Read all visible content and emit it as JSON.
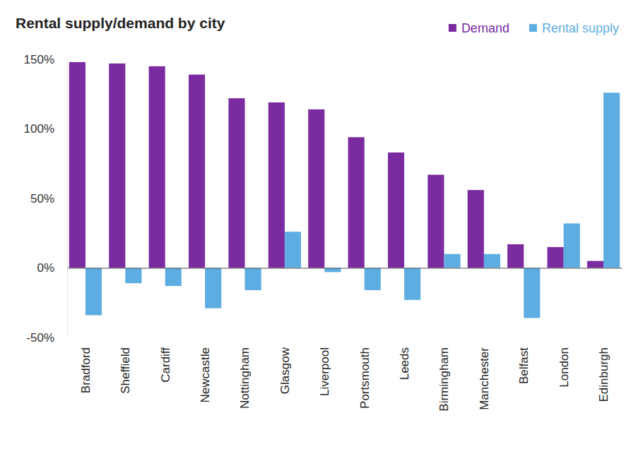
{
  "chart_data": {
    "type": "bar",
    "title": "Rental supply/demand by city",
    "categories": [
      "Bradford",
      "Sheffield",
      "Cardiff",
      "Newcastle",
      "Nottingham",
      "Glasgow",
      "Liverpool",
      "Portsmouth",
      "Leeds",
      "Birmingham",
      "Manchester",
      "Belfast",
      "London",
      "Edinburgh"
    ],
    "series": [
      {
        "name": "Demand",
        "color": "#7a2b9f",
        "values": [
          148,
          147,
          145,
          139,
          122,
          119,
          114,
          94,
          83,
          67,
          56,
          17,
          15,
          5
        ]
      },
      {
        "name": "Rental supply",
        "color": "#5dade2",
        "values": [
          -34,
          -11,
          -13,
          -29,
          -16,
          26,
          -3,
          -16,
          -23,
          10,
          10,
          -36,
          32,
          126
        ]
      }
    ],
    "ylim": [
      -50,
      150
    ],
    "yticks": [
      {
        "value": -50,
        "label": "-50%"
      },
      {
        "value": 0,
        "label": "0%"
      },
      {
        "value": 50,
        "label": "50%"
      },
      {
        "value": 100,
        "label": "100%"
      },
      {
        "value": 150,
        "label": "150%"
      }
    ],
    "grid": false,
    "legend": "top-right"
  }
}
